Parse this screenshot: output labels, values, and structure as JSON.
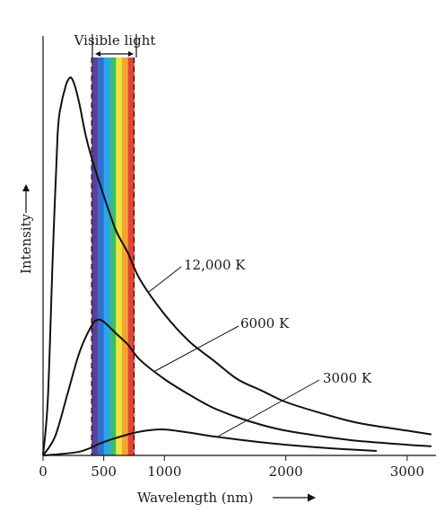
{
  "chart_data": {
    "type": "line",
    "title": "",
    "xlabel": "Wavelength (nm)",
    "ylabel": "Intensity",
    "xlim": [
      0,
      3200
    ],
    "ylim": [
      0,
      1
    ],
    "x_ticks": [
      {
        "value": 0,
        "label": "0"
      },
      {
        "value": 500,
        "label": "500"
      },
      {
        "value": 1000,
        "label": "1000"
      },
      {
        "value": 2000,
        "label": "2000"
      },
      {
        "value": 3000,
        "label": "3000"
      }
    ],
    "visible_band": {
      "label": "Visible light",
      "start_nm": 400,
      "end_nm": 750,
      "colors": [
        "#5b3f99",
        "#2f6fd0",
        "#28a7e6",
        "#3dbb6a",
        "#f2e23a",
        "#f6a23a",
        "#e2433a"
      ]
    },
    "series": [
      {
        "name": "12,000 K",
        "points": [
          [
            0,
            0
          ],
          [
            40,
            0.15
          ],
          [
            80,
            0.52
          ],
          [
            120,
            0.84
          ],
          [
            150,
            0.92
          ],
          [
            180,
            0.96
          ],
          [
            200,
            0.98
          ],
          [
            230,
            0.99
          ],
          [
            260,
            0.97
          ],
          [
            300,
            0.92
          ],
          [
            350,
            0.84
          ],
          [
            400,
            0.78
          ],
          [
            500,
            0.68
          ],
          [
            600,
            0.59
          ],
          [
            700,
            0.53
          ],
          [
            800,
            0.46
          ],
          [
            1000,
            0.37
          ],
          [
            1200,
            0.3
          ],
          [
            1400,
            0.25
          ],
          [
            1600,
            0.2
          ],
          [
            1800,
            0.17
          ],
          [
            2000,
            0.14
          ],
          [
            2300,
            0.11
          ],
          [
            2600,
            0.085
          ],
          [
            3000,
            0.065
          ],
          [
            3200,
            0.055
          ]
        ]
      },
      {
        "name": "6000 K",
        "points": [
          [
            0,
            0
          ],
          [
            100,
            0.05
          ],
          [
            200,
            0.16
          ],
          [
            300,
            0.27
          ],
          [
            400,
            0.34
          ],
          [
            450,
            0.355
          ],
          [
            500,
            0.35
          ],
          [
            600,
            0.32
          ],
          [
            700,
            0.29
          ],
          [
            800,
            0.25
          ],
          [
            1000,
            0.2
          ],
          [
            1200,
            0.16
          ],
          [
            1400,
            0.125
          ],
          [
            1600,
            0.1
          ],
          [
            1800,
            0.08
          ],
          [
            2000,
            0.065
          ],
          [
            2300,
            0.05
          ],
          [
            2600,
            0.038
          ],
          [
            3000,
            0.028
          ],
          [
            3200,
            0.024
          ]
        ]
      },
      {
        "name": "3000 K",
        "points": [
          [
            0,
            0
          ],
          [
            300,
            0.01
          ],
          [
            500,
            0.035
          ],
          [
            700,
            0.055
          ],
          [
            850,
            0.065
          ],
          [
            1000,
            0.068
          ],
          [
            1200,
            0.06
          ],
          [
            1400,
            0.05
          ],
          [
            1700,
            0.038
          ],
          [
            2000,
            0.028
          ],
          [
            2400,
            0.018
          ],
          [
            2750,
            0.012
          ]
        ]
      }
    ]
  }
}
